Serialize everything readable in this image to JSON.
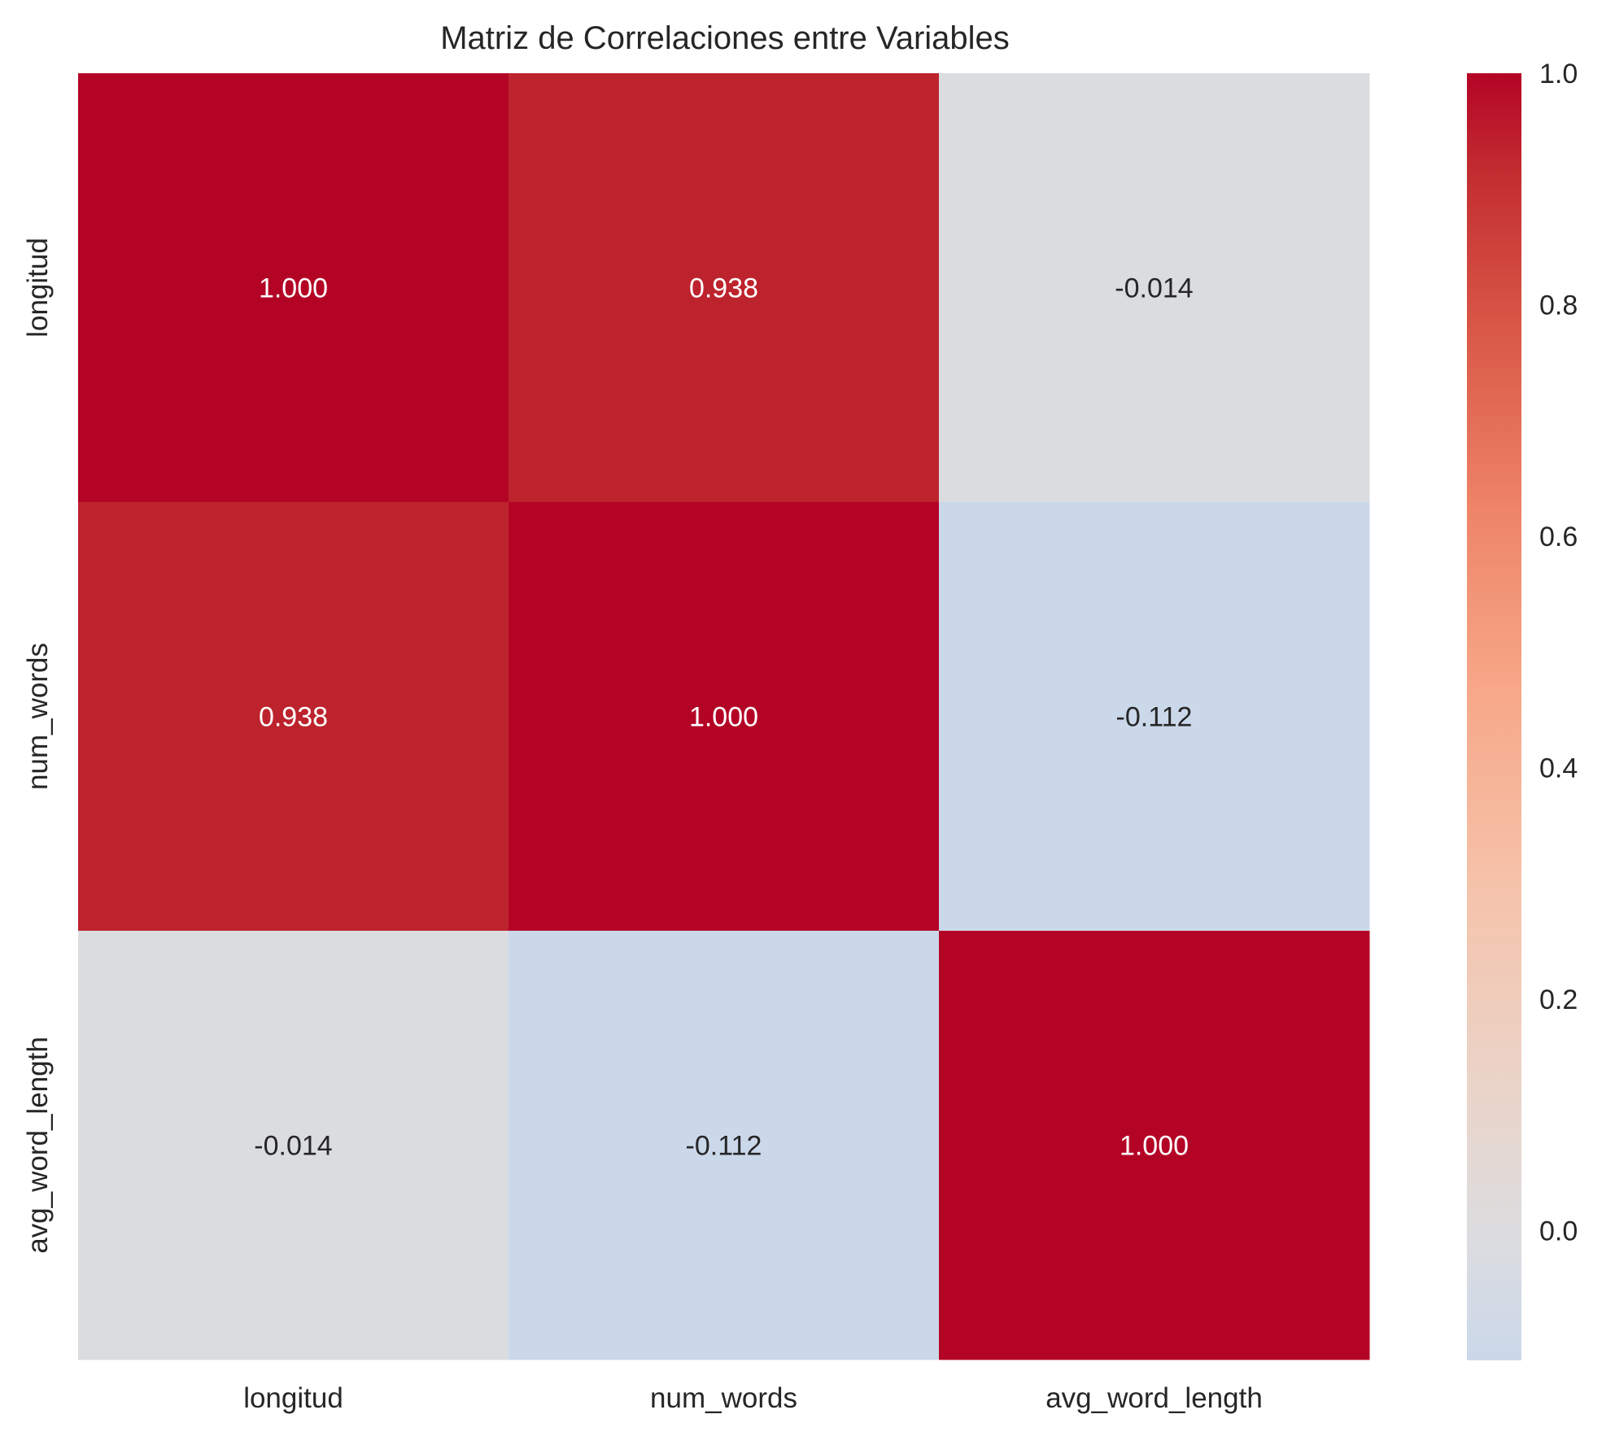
{
  "chart_data": {
    "type": "heatmap",
    "title": "Matriz de Correlaciones entre Variables",
    "x_labels": [
      "longitud",
      "num_words",
      "avg_word_length"
    ],
    "y_labels": [
      "longitud",
      "num_words",
      "avg_word_length"
    ],
    "values": [
      [
        1.0,
        0.938,
        -0.014
      ],
      [
        0.938,
        1.0,
        -0.112
      ],
      [
        -0.014,
        -0.112,
        1.0
      ]
    ],
    "cell_labels": [
      [
        "1.000",
        "0.938",
        "-0.014"
      ],
      [
        "0.938",
        "1.000",
        "-0.112"
      ],
      [
        "-0.014",
        "-0.112",
        "1.000"
      ]
    ],
    "colormap": "coolwarm",
    "center": 0,
    "colorbar": {
      "range": [
        -0.112,
        1.0
      ],
      "tick_values": [
        0.0,
        0.2,
        0.4,
        0.6,
        0.8,
        1.0
      ],
      "tick_labels": [
        "0.0",
        "0.2",
        "0.4",
        "0.6",
        "0.8",
        "1.0"
      ],
      "position": "right"
    },
    "grid": false,
    "colors": {
      "max": "#b40426",
      "high": "#bd232d",
      "zero": "#dcdcdf",
      "min": "#cbd8ea",
      "text_light": "#ffffff",
      "text_dark": "#262626",
      "label": "#262626"
    }
  }
}
